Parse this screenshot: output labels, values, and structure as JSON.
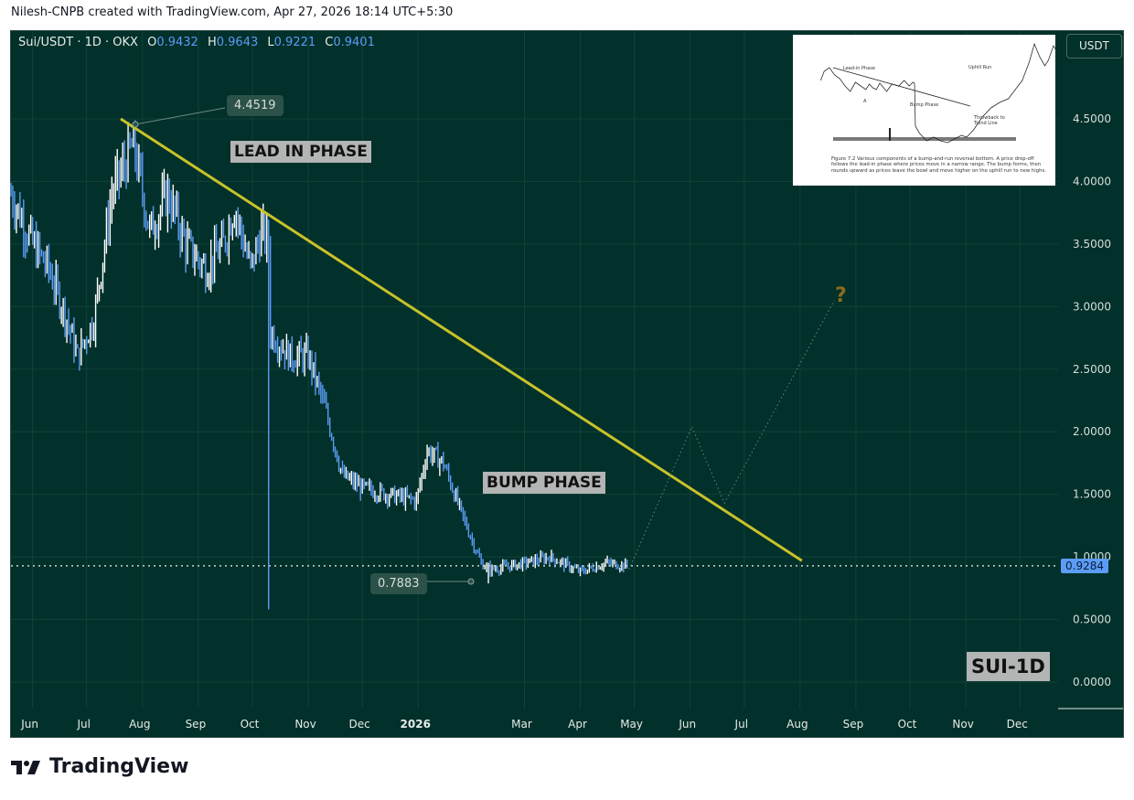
{
  "header": {
    "credit": "Nilesh-CNPB created with TradingView.com, Apr 27, 2026 18:14 UTC+5:30"
  },
  "legend": {
    "symbol": "Sui/USDT · 1D · OKX",
    "o_label": "O",
    "o": "0.9432",
    "h_label": "H",
    "h": "0.9643",
    "l_label": "L",
    "l": "0.9221",
    "c_label": "C",
    "c": "0.9401"
  },
  "currency_button": "USDT",
  "last_price": "0.9284",
  "annotations": {
    "lead_in": "LEAD IN PHASE",
    "bump": "BUMP PHASE",
    "symbol_tag": "SUI-1D",
    "high_callout": "4.4519",
    "low_callout": "0.7883",
    "question": "?"
  },
  "inset": {
    "caption": "Figure 7.2  Various components of a bump-and-run reversal bottom. A price drop-off follows the lead-in phase where prices move in a narrow range. The bump forms, then rounds upward as prices leave the bowl and move higher on the uphill run to new highs.",
    "labels": {
      "lead_in": "Lead-in Phase",
      "bump": "Bump Phase",
      "uphill": "Uphill Run",
      "throwback": "Throwback to Trend Line",
      "a": "A"
    }
  },
  "brand": "TradingView",
  "colors": {
    "background": "#02302a",
    "up": "#ffffff",
    "down": "#5b9cf6",
    "trendline": "#c8c22a",
    "accent": "#5b9cf6"
  },
  "chart_data": {
    "type": "ohlc",
    "start_date": "2025-05-20",
    "y_ticks": [
      "0.0000",
      "0.5000",
      "1.0000",
      "1.5000",
      "2.0000",
      "2.5000",
      "3.0000",
      "3.5000",
      "4.0000",
      "4.5000"
    ],
    "ylim": [
      -0.2,
      5.1
    ],
    "x_ticks": [
      [
        "2025-06-01",
        "Jun"
      ],
      [
        "2025-07-01",
        "Jul"
      ],
      [
        "2025-08-01",
        "Aug"
      ],
      [
        "2025-09-01",
        "Sep"
      ],
      [
        "2025-10-01",
        "Oct"
      ],
      [
        "2025-11-01",
        "Nov"
      ],
      [
        "2025-12-01",
        "Dec"
      ],
      [
        "2026-01-01",
        "2026"
      ],
      [
        "2026-03-01",
        "Mar"
      ],
      [
        "2026-04-01",
        "Apr"
      ],
      [
        "2026-05-01",
        "May"
      ],
      [
        "2026-06-01",
        "Jun"
      ],
      [
        "2026-07-01",
        "Jul"
      ],
      [
        "2026-08-01",
        "Aug"
      ],
      [
        "2026-09-01",
        "Sep"
      ],
      [
        "2026-10-01",
        "Oct"
      ],
      [
        "2026-11-01",
        "Nov"
      ],
      [
        "2026-12-01",
        "Dec"
      ]
    ],
    "close_path": [
      [
        "2025-05-20",
        3.9
      ],
      [
        "2025-06-01",
        3.5
      ],
      [
        "2025-06-10",
        3.3
      ],
      [
        "2025-06-20",
        2.9
      ],
      [
        "2025-06-26",
        2.6
      ],
      [
        "2025-07-05",
        2.9
      ],
      [
        "2025-07-15",
        3.9
      ],
      [
        "2025-07-27",
        4.3
      ],
      [
        "2025-08-05",
        3.6
      ],
      [
        "2025-08-15",
        3.9
      ],
      [
        "2025-08-25",
        3.5
      ],
      [
        "2025-09-05",
        3.3
      ],
      [
        "2025-09-15",
        3.5
      ],
      [
        "2025-09-21",
        3.8
      ],
      [
        "2025-09-30",
        3.3
      ],
      [
        "2025-10-06",
        3.6
      ],
      [
        "2025-10-10",
        3.5
      ],
      [
        "2025-10-11",
        2.8
      ],
      [
        "2025-10-22",
        2.6
      ],
      [
        "2025-11-01",
        2.6
      ],
      [
        "2025-11-10",
        2.2
      ],
      [
        "2025-11-20",
        1.65
      ],
      [
        "2025-12-01",
        1.55
      ],
      [
        "2025-12-15",
        1.5
      ],
      [
        "2025-12-31",
        1.45
      ],
      [
        "2026-01-06",
        1.85
      ],
      [
        "2026-01-15",
        1.75
      ],
      [
        "2026-01-25",
        1.35
      ],
      [
        "2026-02-05",
        0.95
      ],
      [
        "2026-02-10",
        0.9
      ],
      [
        "2026-03-01",
        0.95
      ],
      [
        "2026-03-15",
        1.0
      ],
      [
        "2026-04-01",
        0.88
      ],
      [
        "2026-04-15",
        0.95
      ],
      [
        "2026-04-27",
        0.93
      ]
    ],
    "wicks": [
      [
        "2025-07-27",
        4.4519,
        "high"
      ],
      [
        "2025-10-10",
        0.58,
        "low"
      ],
      [
        "2026-02-09",
        0.7883,
        "low"
      ]
    ],
    "trendline": [
      [
        "2025-07-27",
        4.5
      ],
      [
        "2026-08-02",
        0.97
      ]
    ],
    "projection": [
      [
        "2026-04-28",
        0.9
      ],
      [
        "2026-06-02",
        2.04
      ],
      [
        "2026-06-20",
        1.43
      ],
      [
        "2026-08-20",
        3.05
      ]
    ],
    "last_price": 0.9284
  }
}
